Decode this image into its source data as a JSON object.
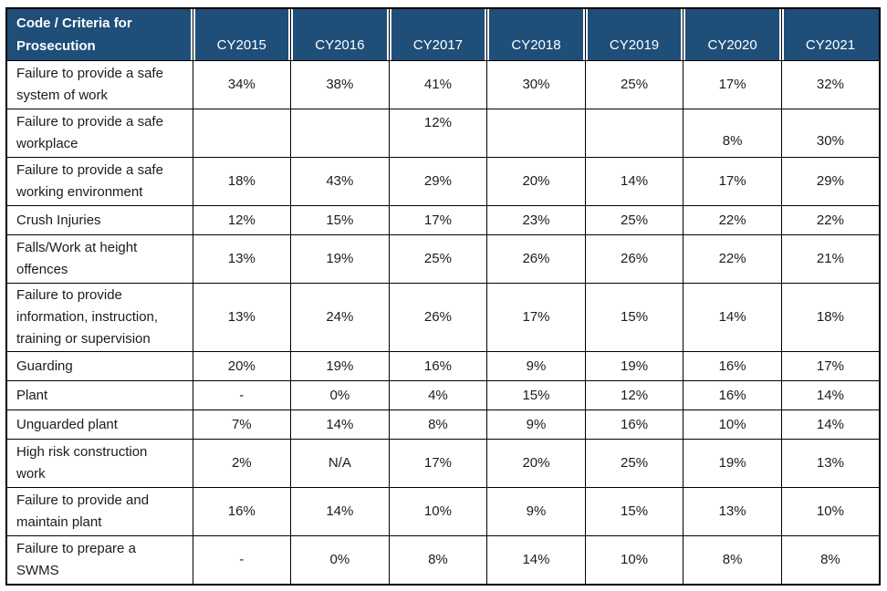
{
  "table": {
    "title": "Code / Criteria for Prosecution by calendar year",
    "header": {
      "criteria_label": "Code / Criteria for\nProsecution",
      "year_columns": [
        "CY2015",
        "CY2016",
        "CY2017",
        "CY2018",
        "CY2019",
        "CY2020",
        "CY2021"
      ]
    },
    "rows": [
      {
        "criteria": "Failure to provide a safe\nsystem of work",
        "values": [
          "34%",
          "38%",
          "41%",
          "30%",
          "25%",
          "17%",
          "32%"
        ]
      },
      {
        "criteria": "Failure to provide a safe\nworkplace",
        "values": [
          "",
          "",
          "12%",
          "",
          "",
          "8%",
          "30%"
        ],
        "cell_align": {
          "2": "top",
          "5": "bottom",
          "6": "bottom"
        }
      },
      {
        "criteria": "Failure to provide a safe\nworking environment",
        "values": [
          "18%",
          "43%",
          "29%",
          "20%",
          "14%",
          "17%",
          "29%"
        ]
      },
      {
        "criteria": "Crush Injuries",
        "values": [
          "12%",
          "15%",
          "17%",
          "23%",
          "25%",
          "22%",
          "22%"
        ]
      },
      {
        "criteria": "Falls/Work at height\noffences",
        "values": [
          "13%",
          "19%",
          "25%",
          "26%",
          "26%",
          "22%",
          "21%"
        ]
      },
      {
        "criteria": "Failure to provide\ninformation, instruction,\ntraining or supervision",
        "values": [
          "13%",
          "24%",
          "26%",
          "17%",
          "15%",
          "14%",
          "18%"
        ]
      },
      {
        "criteria": "Guarding",
        "values": [
          "20%",
          "19%",
          "16%",
          "9%",
          "19%",
          "16%",
          "17%"
        ]
      },
      {
        "criteria": "Plant",
        "values": [
          "-",
          "0%",
          "4%",
          "15%",
          "12%",
          "16%",
          "14%"
        ]
      },
      {
        "criteria": "Unguarded plant",
        "values": [
          "7%",
          "14%",
          "8%",
          "9%",
          "16%",
          "10%",
          "14%"
        ]
      },
      {
        "criteria": "High risk construction\nwork",
        "values": [
          "2%",
          "N/A",
          "17%",
          "20%",
          "25%",
          "19%",
          "13%"
        ]
      },
      {
        "criteria": "Failure to provide and\nmaintain plant",
        "values": [
          "16%",
          "14%",
          "10%",
          "9%",
          "15%",
          "13%",
          "10%"
        ]
      },
      {
        "criteria": "Failure to prepare a\nSWMS",
        "values": [
          "-",
          "0%",
          "8%",
          "14%",
          "10%",
          "8%",
          "8%"
        ]
      }
    ],
    "colors": {
      "header_background": "#1F4E79",
      "header_text": "#FFFFFF",
      "grid_border": "#000000",
      "body_text": "#1C1C1C",
      "page_background": "#FFFFFF"
    }
  }
}
